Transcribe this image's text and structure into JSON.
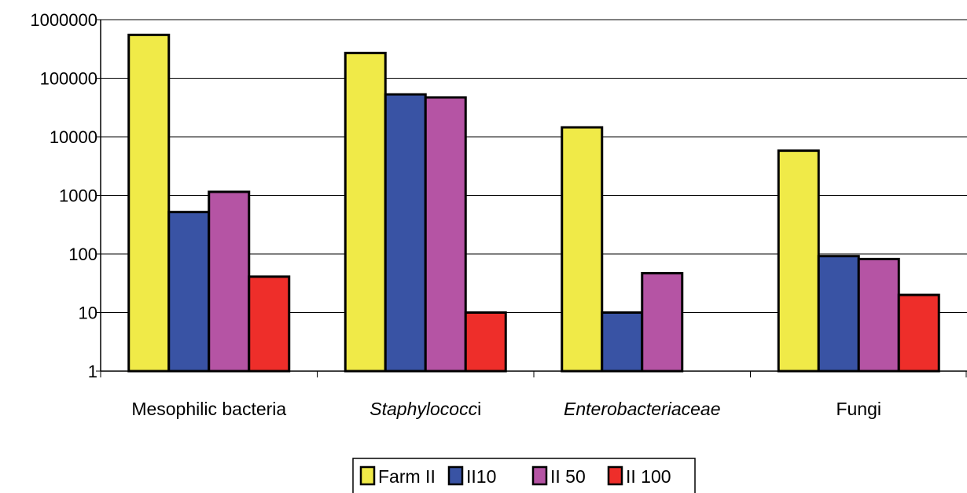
{
  "chart_data": {
    "type": "bar",
    "title": "",
    "xlabel": "",
    "ylabel": "",
    "yscale": "log",
    "ylim": [
      1,
      1000000
    ],
    "y_ticks": [
      "1",
      "10",
      "100",
      "1000",
      "10000",
      "100000",
      "1000000"
    ],
    "grid": "horizontal",
    "legend_position": "bottom",
    "categories": [
      {
        "label": "Mesophilic bacteria",
        "italic": false
      },
      {
        "label": "Staphylococci",
        "italic_part": "Staphylococc",
        "plain_part": "i"
      },
      {
        "label": "Enterobacteriaceae",
        "italic": true
      },
      {
        "label": "Fungi",
        "italic": false
      }
    ],
    "series": [
      {
        "name": "Farm II",
        "color": "#f0ea48",
        "values": [
          550000,
          270000,
          14500,
          5800
        ]
      },
      {
        "name": "II10",
        "color": "#3953a4",
        "values": [
          520,
          53000,
          10,
          92
        ]
      },
      {
        "name": "II 50",
        "color": "#b554a4",
        "values": [
          1150,
          47000,
          47,
          82
        ]
      },
      {
        "name": "II 100",
        "color": "#ee2e2a",
        "values": [
          41,
          10,
          null,
          20
        ]
      }
    ]
  }
}
